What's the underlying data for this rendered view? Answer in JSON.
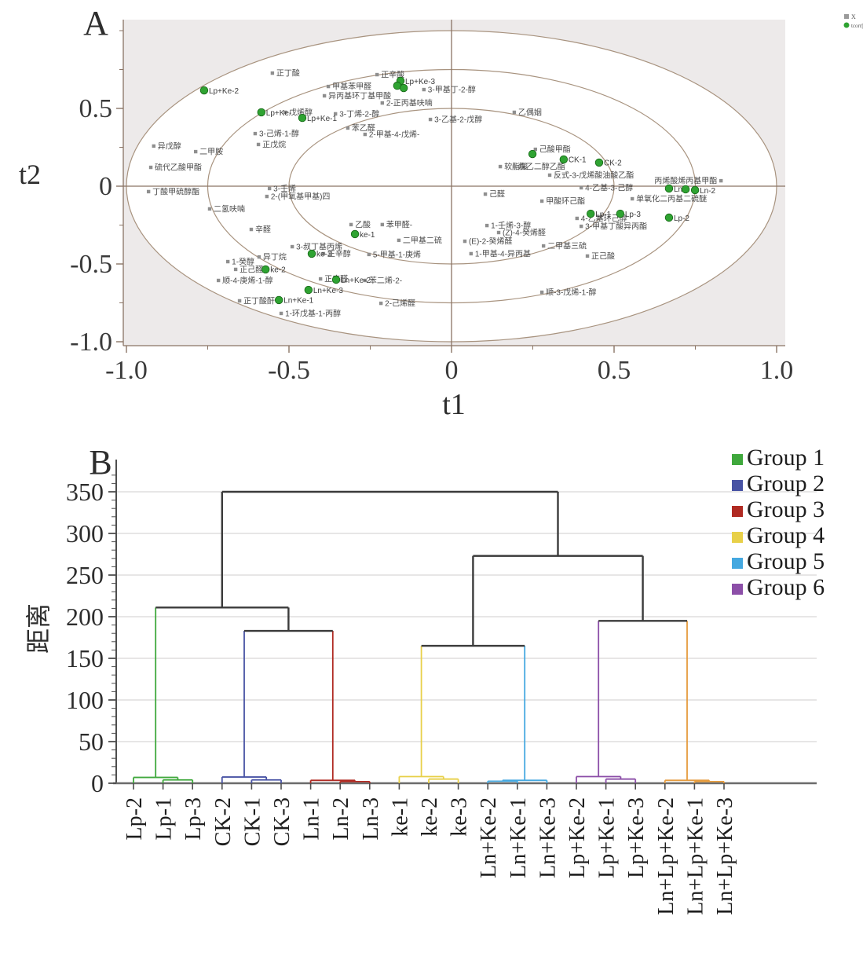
{
  "figure": {
    "panel_a_label": "A",
    "panel_b_label": "B"
  },
  "chart_data": [
    {
      "type": "scatter",
      "panel": "A",
      "xlabel": "t1",
      "ylabel": "t2",
      "xlim": [
        -1.05,
        1.06
      ],
      "ylim": [
        -1.08,
        1.08
      ],
      "x_ticks": [
        "-1.0",
        "-0.5",
        "0",
        "0.5",
        "1.0"
      ],
      "x_tick_vals": [
        -1,
        -0.5,
        0,
        0.5,
        1
      ],
      "y_ticks": [
        "0.5",
        "0",
        "-0.5",
        "-1.0"
      ],
      "y_tick_vals": [
        0.5,
        0,
        -0.5,
        -1
      ],
      "minor_tick_vals": [
        -1,
        -0.75,
        -0.5,
        -0.25,
        0.25,
        0.5,
        0.75,
        1
      ],
      "ellipse_radii": [
        1.0,
        0.75,
        0.5
      ],
      "legend": [
        {
          "label": "X",
          "color": "#9a9a9a",
          "shape": "square"
        },
        {
          "label": "tcorr[2]",
          "color": "#2fa332",
          "shape": "circle"
        }
      ],
      "colors": {
        "variable": "#8f8f8f",
        "score_fill": "#2fa332",
        "score_stroke": "#156515",
        "axis": "#8a7465",
        "ellipse": "#a8937f",
        "plot_bg": "#edeaea",
        "label_text": "#4a4a4a"
      },
      "series": [
        {
          "name": "X",
          "points": [
            {
              "l": "正丁酸",
              "x": -0.551,
              "y": 0.727
            },
            {
              "l": "甲基苯甲醛",
              "x": -0.379,
              "y": 0.641
            },
            {
              "l": "异丙基环丁基甲酸",
              "x": -0.391,
              "y": 0.581
            },
            {
              "l": "正辛酸",
              "x": -0.229,
              "y": 0.717
            },
            {
              "l": "3-甲基丁-2-醇",
              "x": -0.085,
              "y": 0.621
            },
            {
              "l": "2-正丙基呋喃",
              "x": -0.213,
              "y": 0.535
            },
            {
              "l": "乙偶姻",
              "x": 0.193,
              "y": 0.475
            },
            {
              "l": "3-丁烯-2-醇",
              "x": -0.357,
              "y": 0.465
            },
            {
              "l": "3-乙基-2-戊醇",
              "x": -0.065,
              "y": 0.429
            },
            {
              "l": "苯乙醛",
              "x": -0.319,
              "y": 0.374
            },
            {
              "l": "2-甲基-4-戊烯-",
              "x": -0.266,
              "y": 0.333
            },
            {
              "l": "戊烯醇",
              "x": -0.512,
              "y": 0.475
            },
            {
              "l": "3-己烯-1-醇",
              "x": -0.604,
              "y": 0.338
            },
            {
              "l": "正戊烷",
              "x": -0.594,
              "y": 0.268
            },
            {
              "l": "异戊醇",
              "x": -0.916,
              "y": 0.258
            },
            {
              "l": "二甲胺",
              "x": -0.787,
              "y": 0.222
            },
            {
              "l": "硫代乙酸甲酯",
              "x": -0.925,
              "y": 0.121
            },
            {
              "l": "丁酸甲硫醇酯",
              "x": -0.932,
              "y": -0.035
            },
            {
              "l": "3-壬烯",
              "x": -0.56,
              "y": -0.015
            },
            {
              "l": "2-(甲氧基甲基)四",
              "x": -0.568,
              "y": -0.066
            },
            {
              "l": "二氢呋喃",
              "x": -0.744,
              "y": -0.146
            },
            {
              "l": "辛醛",
              "x": -0.616,
              "y": -0.278
            },
            {
              "l": "乙酸",
              "x": -0.309,
              "y": -0.247
            },
            {
              "l": "苯甲醛-",
              "x": -0.213,
              "y": -0.247
            },
            {
              "l": "二甲基二硫",
              "x": -0.162,
              "y": -0.348
            },
            {
              "l": "5-甲基-1-庚烯",
              "x": -0.254,
              "y": -0.439
            },
            {
              "l": "3-叔丁基丙烯",
              "x": -0.49,
              "y": -0.389
            },
            {
              "l": "正辛醇",
              "x": -0.394,
              "y": -0.434
            },
            {
              "l": "1-癸醇",
              "x": -0.688,
              "y": -0.485
            },
            {
              "l": "异丁烷",
              "x": -0.592,
              "y": -0.455
            },
            {
              "l": "正己醛",
              "x": -0.664,
              "y": -0.535
            },
            {
              "l": "顺-4-庚烯-1-醇",
              "x": -0.717,
              "y": -0.606
            },
            {
              "l": "正丁酸酐",
              "x": -0.652,
              "y": -0.737
            },
            {
              "l": "1-环戊基-1-丙醇",
              "x": -0.524,
              "y": -0.818
            },
            {
              "l": "正庚醛",
              "x": -0.403,
              "y": -0.596
            },
            {
              "l": "苯二烯-2-",
              "x": -0.266,
              "y": -0.606
            },
            {
              "l": "2-己烯醛",
              "x": -0.217,
              "y": -0.753
            },
            {
              "l": "顺-3-戊烯-1-醇",
              "x": 0.278,
              "y": -0.682
            },
            {
              "l": "正己酸",
              "x": 0.418,
              "y": -0.449
            },
            {
              "l": "二甲基三硫",
              "x": 0.283,
              "y": -0.384
            },
            {
              "l": "1-甲基-4-异丙基",
              "x": 0.06,
              "y": -0.434
            },
            {
              "l": "(E)-2-癸烯醛",
              "x": 0.041,
              "y": -0.354
            },
            {
              "l": "(Z)-4-癸烯醛",
              "x": 0.145,
              "y": -0.298
            },
            {
              "l": "1-壬烯-3-醇",
              "x": 0.109,
              "y": -0.253
            },
            {
              "l": "甲酸环己酯",
              "x": 0.278,
              "y": -0.096
            },
            {
              "l": "己醛",
              "x": 0.104,
              "y": -0.051
            },
            {
              "l": "4-乙基-3-己醇",
              "x": 0.399,
              "y": -0.01
            },
            {
              "l": "4-乙基环己醇",
              "x": 0.386,
              "y": -0.207
            },
            {
              "l": "3-甲基丁酸异丙酯",
              "x": 0.399,
              "y": -0.258
            },
            {
              "l": "软脂酸",
              "x": 0.15,
              "y": 0.126
            },
            {
              "l": "炔乙二醇乙酯",
              "x": 0.193,
              "y": 0.126
            },
            {
              "l": "反式-3-戊烯酸油酸乙酯",
              "x": 0.302,
              "y": 0.071
            },
            {
              "l": "己酸甲酯",
              "x": 0.258,
              "y": 0.237
            },
            {
              "l": "单氧化二丙基二硫醚",
              "x": 0.556,
              "y": -0.081
            },
            {
              "l": "丙烯酸烯丙基甲酯",
              "x": 0.829,
              "y": 0.035,
              "s": "l"
            }
          ]
        },
        {
          "name": "tcorr[2]",
          "points": [
            {
              "l": "Lp+Ke-2",
              "x": -0.761,
              "y": 0.616
            },
            {
              "l": "Lp+Ke-3",
              "x": -0.157,
              "y": 0.677
            },
            {
              "l": "",
              "x": -0.167,
              "y": 0.646
            },
            {
              "l": "",
              "x": -0.147,
              "y": 0.631
            },
            {
              "l": "Lp+Ke-",
              "x": -0.585,
              "y": 0.475
            },
            {
              "l": "Lp+Ke-1",
              "x": -0.459,
              "y": 0.439
            },
            {
              "l": "",
              "x": 0.249,
              "y": 0.207
            },
            {
              "l": "CK-1",
              "x": 0.345,
              "y": 0.172
            },
            {
              "l": "CK-2",
              "x": 0.454,
              "y": 0.152
            },
            {
              "l": "Ln-1",
              "x": 0.669,
              "y": -0.015
            },
            {
              "l": "",
              "x": 0.72,
              "y": -0.02
            },
            {
              "l": "Ln-2",
              "x": 0.749,
              "y": -0.025
            },
            {
              "l": "Lp-1",
              "x": 0.428,
              "y": -0.177
            },
            {
              "l": "Lp-3",
              "x": 0.519,
              "y": -0.177
            },
            {
              "l": "Lp-2",
              "x": 0.669,
              "y": -0.202
            },
            {
              "l": "ke-1",
              "x": -0.297,
              "y": -0.308
            },
            {
              "l": "ke-3",
              "x": -0.43,
              "y": -0.434
            },
            {
              "l": "ke-2",
              "x": -0.572,
              "y": -0.535
            },
            {
              "l": "Ln+Ke-2",
              "x": -0.355,
              "y": -0.601
            },
            {
              "l": "Ln+Ke-3",
              "x": -0.44,
              "y": -0.667
            },
            {
              "l": "Ln+Ke-1",
              "x": -0.531,
              "y": -0.732
            }
          ]
        }
      ]
    },
    {
      "type": "dendrogram",
      "panel": "B",
      "ylabel": "距离",
      "ylim": [
        0,
        375
      ],
      "y_ticks": [
        0,
        50,
        100,
        150,
        200,
        250,
        300,
        350
      ],
      "grid": true,
      "leaves": [
        "Lp-2",
        "Lp-1",
        "Lp-3",
        "CK-2",
        "CK-1",
        "CK-3",
        "Ln-1",
        "Ln-2",
        "Ln-3",
        "ke-1",
        "ke-2",
        "ke-3",
        "Ln+Ke-2",
        "Ln+Ke-1",
        "Ln+Ke-3",
        "Lp+Ke-2",
        "Lp+Ke-1",
        "Lp+Ke-3",
        "Ln+Lp+Ke-2",
        "Ln+Lp+Ke-1",
        "Ln+Lp+Ke-3"
      ],
      "leaf_groups": [
        1,
        1,
        1,
        2,
        2,
        2,
        3,
        3,
        3,
        4,
        4,
        4,
        5,
        5,
        5,
        6,
        6,
        6,
        7,
        7,
        7
      ],
      "group_colors": {
        "g1": "#3fa83c",
        "g2": "#4853a4",
        "g3": "#b02a22",
        "g4": "#e8d049",
        "g5": "#44a8e0",
        "g6": "#8c4fa8",
        "g7": "#e59b3d",
        "k": "#3b3b3b"
      },
      "merges": [
        [
          "L1",
          "L2",
          4,
          "g1"
        ],
        [
          "L0",
          "m0",
          7,
          "g1"
        ],
        [
          "L4",
          "L5",
          4,
          "g2"
        ],
        [
          "L3",
          "m2",
          7.5,
          "g2"
        ],
        [
          "L7",
          "L8",
          2,
          "g3"
        ],
        [
          "L6",
          "m4",
          3.5,
          "g3"
        ],
        [
          "m3",
          "m5",
          183,
          "k"
        ],
        [
          "m1",
          "m6",
          211,
          "k"
        ],
        [
          "L10",
          "L11",
          5,
          "g4"
        ],
        [
          "L9",
          "m8",
          8,
          "g4"
        ],
        [
          "L12",
          "L13",
          2.5,
          "g5"
        ],
        [
          "m10",
          "L14",
          3.5,
          "g5"
        ],
        [
          "m9",
          "m11",
          165,
          "k"
        ],
        [
          "L16",
          "L17",
          5,
          "g6"
        ],
        [
          "L15",
          "m13",
          8,
          "g6"
        ],
        [
          "L19",
          "L20",
          2,
          "g7"
        ],
        [
          "L18",
          "m15",
          3.5,
          "g7"
        ],
        [
          "m14",
          "m16",
          195,
          "k"
        ],
        [
          "m12",
          "m17",
          273,
          "k"
        ],
        [
          "m7",
          "m18",
          350,
          "k"
        ]
      ],
      "legend": [
        {
          "label": "Group 1",
          "color": "#3fa83c"
        },
        {
          "label": "Group 2",
          "color": "#4853a4"
        },
        {
          "label": "Group 3",
          "color": "#b02a22"
        },
        {
          "label": "Group 4",
          "color": "#e8d049"
        },
        {
          "label": "Group 5",
          "color": "#44a8e0"
        },
        {
          "label": "Group 6",
          "color": "#8c4fa8"
        }
      ]
    }
  ]
}
